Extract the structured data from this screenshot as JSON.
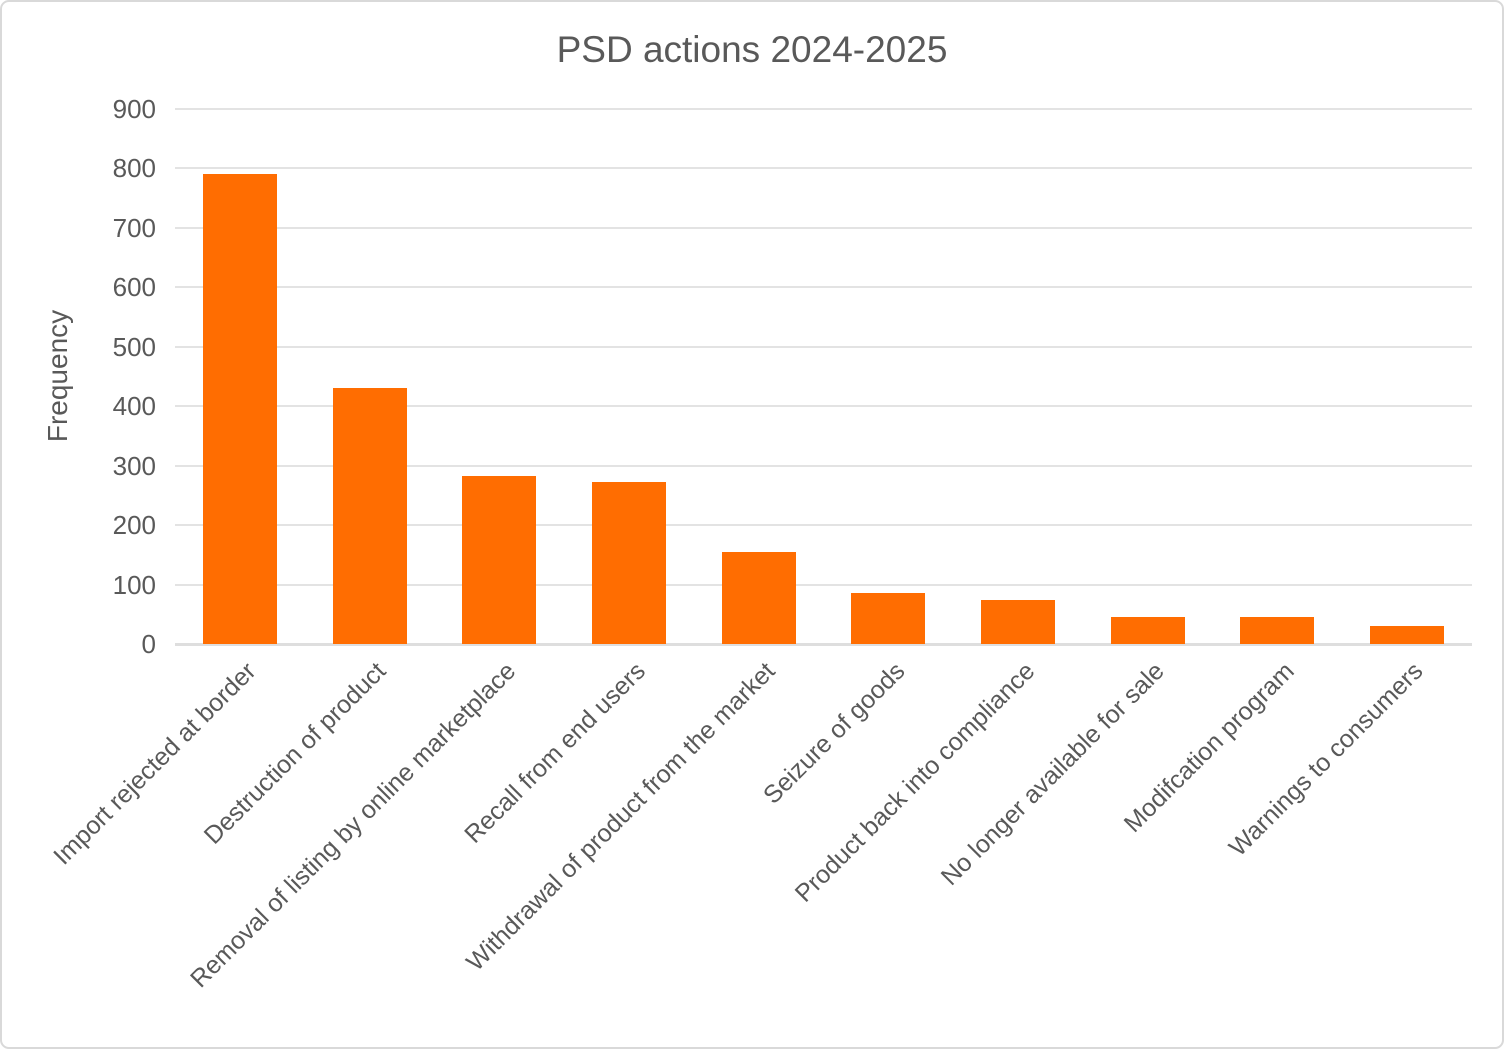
{
  "chart_data": {
    "type": "bar",
    "title": "PSD actions 2024-2025",
    "xlabel": "",
    "ylabel": "Frequency",
    "categories": [
      "Import rejected at border",
      "Destruction of product",
      "Removal of listing by online marketplace",
      "Recall from end users",
      "Withdrawal of product from the market",
      "Seizure of goods",
      "Product back into compliance",
      "No longer available for sale",
      "Modifcation program",
      "Warnings to consumers"
    ],
    "values": [
      790,
      430,
      282,
      273,
      155,
      85,
      74,
      46,
      45,
      30
    ],
    "ylim": [
      0,
      900
    ],
    "yticks": [
      0,
      100,
      200,
      300,
      400,
      500,
      600,
      700,
      800,
      900
    ],
    "grid": "horizontal",
    "legend_position": "none",
    "x_label_rotation_deg": 45,
    "colors": {
      "bar": "#FF6D01",
      "title_text": "#595959",
      "axis_text": "#595959",
      "gridline": "#E3E3E3",
      "baseline": "#DEDEDE",
      "background": "#FFFFFF",
      "border": "#D9D9D9"
    }
  }
}
